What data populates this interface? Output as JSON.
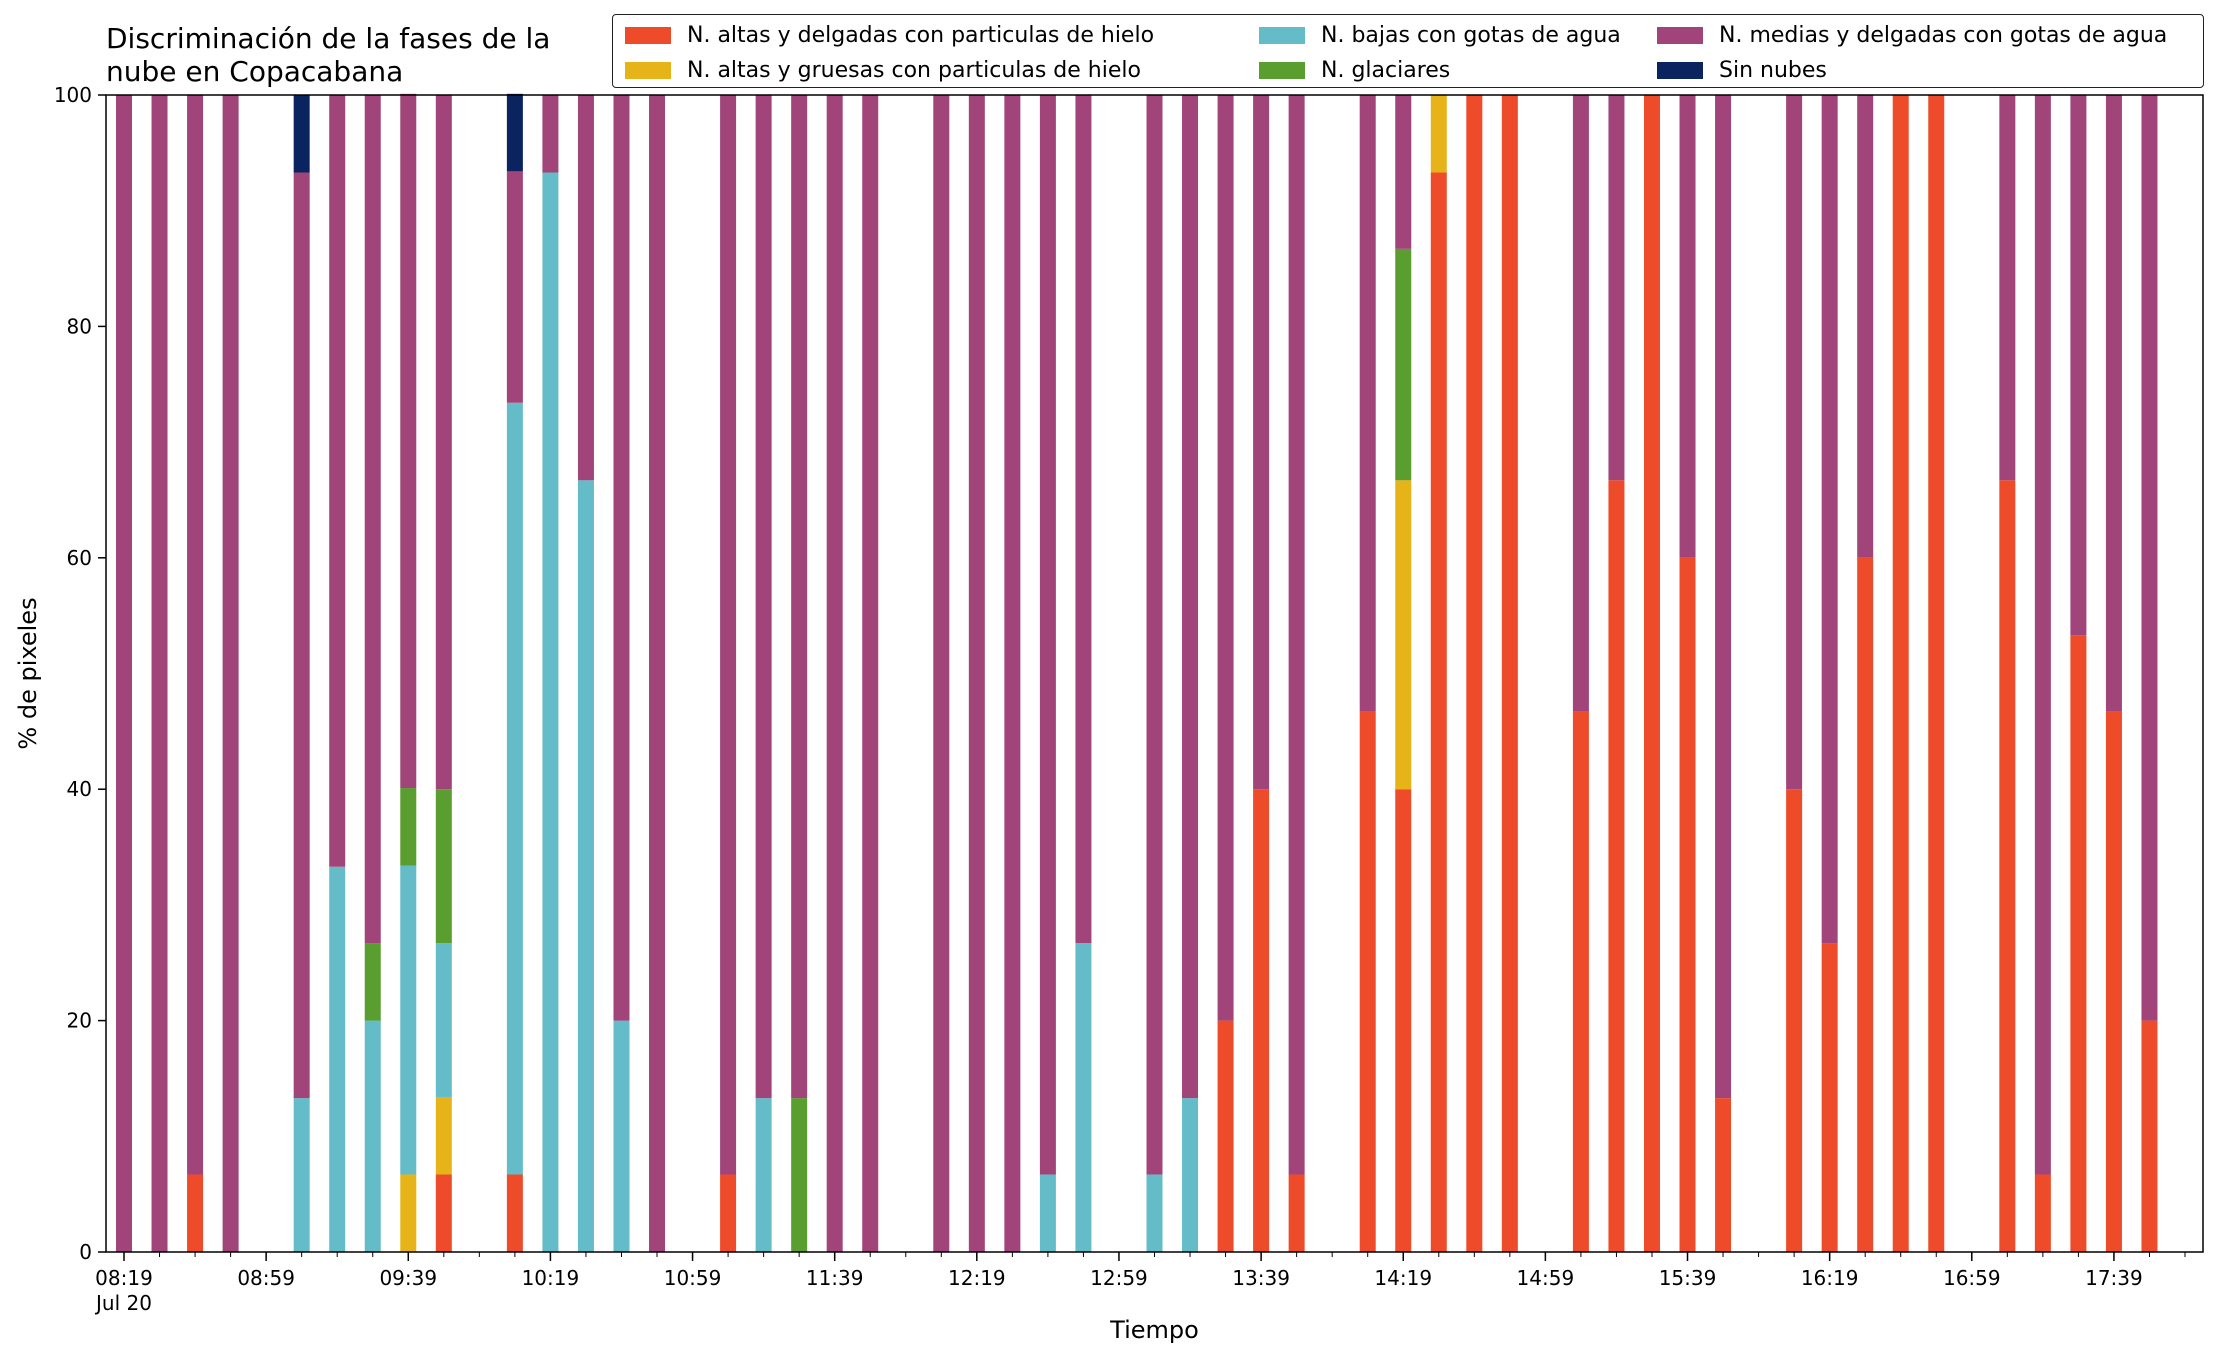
{
  "chart_data": {
    "type": "bar",
    "stacked": true,
    "title": "Discriminación de la fases de la\nnube en Copacabana",
    "xlabel": "Tiempo",
    "ylabel": "% de pixeles",
    "ylim": [
      0,
      100
    ],
    "yticks": [
      "0",
      "20",
      "40",
      "60",
      "80",
      "100"
    ],
    "xtick_labels": [
      "08:19\nJul 20",
      "08:59",
      "09:39",
      "10:19",
      "10:59",
      "11:39",
      "12:19",
      "12:59",
      "13:39",
      "14:19",
      "14:59",
      "15:39",
      "16:19",
      "16:59",
      "17:39"
    ],
    "grid": false,
    "legend_position": "top-right",
    "series": [
      {
        "name": "N. altas y delgadas con particulas de hielo",
        "color": "#ee4b2b"
      },
      {
        "name": "N. altas y gruesas con particulas de hielo",
        "color": "#e6b418"
      },
      {
        "name": "N. bajas con gotas de agua",
        "color": "#64bcc8"
      },
      {
        "name": "N. glaciares",
        "color": "#5a9e2f"
      },
      {
        "name": "N. medias y delgadas con gotas de agua",
        "color": "#a1447a"
      },
      {
        "name": "Sin nubes",
        "color": "#0b2460"
      }
    ],
    "bars": [
      {
        "time": "08:19",
        "values": [
          0,
          0,
          0,
          0,
          100,
          0
        ]
      },
      {
        "time": "08:29",
        "values": [
          0,
          0,
          0,
          0,
          100,
          0
        ]
      },
      {
        "time": "08:39",
        "values": [
          6.7,
          0,
          0,
          0,
          93.3,
          0
        ]
      },
      {
        "time": "08:49",
        "values": [
          0,
          0,
          0,
          0,
          100,
          0
        ]
      },
      {
        "time": "09:09",
        "values": [
          0,
          0,
          13.3,
          0,
          80,
          6.7
        ]
      },
      {
        "time": "09:19",
        "values": [
          0,
          0,
          33.3,
          0,
          66.7,
          0
        ]
      },
      {
        "time": "09:29",
        "values": [
          0,
          0,
          20,
          6.7,
          73.3,
          0
        ]
      },
      {
        "time": "09:39",
        "values": [
          0,
          6.7,
          26.7,
          6.7,
          60,
          0
        ]
      },
      {
        "time": "09:49",
        "values": [
          6.7,
          6.7,
          13.3,
          13.3,
          60,
          0
        ]
      },
      {
        "time": "10:09",
        "values": [
          6.7,
          0,
          66.7,
          0,
          20,
          6.7
        ]
      },
      {
        "time": "10:19",
        "values": [
          0,
          0,
          93.3,
          0,
          6.7,
          0
        ]
      },
      {
        "time": "10:29",
        "values": [
          0,
          0,
          66.7,
          0,
          33.3,
          0
        ]
      },
      {
        "time": "10:39",
        "values": [
          0,
          0,
          20,
          0,
          80,
          0
        ]
      },
      {
        "time": "10:49",
        "values": [
          0,
          0,
          0,
          0,
          100,
          0
        ]
      },
      {
        "time": "11:09",
        "values": [
          6.7,
          0,
          0,
          0,
          93.3,
          0
        ]
      },
      {
        "time": "11:19",
        "values": [
          0,
          0,
          13.3,
          0,
          86.7,
          0
        ]
      },
      {
        "time": "11:29",
        "values": [
          0,
          0,
          0,
          13.3,
          86.7,
          0
        ]
      },
      {
        "time": "11:39",
        "values": [
          0,
          0,
          0,
          0,
          100,
          0
        ]
      },
      {
        "time": "11:49",
        "values": [
          0,
          0,
          0,
          0,
          100,
          0
        ]
      },
      {
        "time": "12:09",
        "values": [
          0,
          0,
          0,
          0,
          100,
          0
        ]
      },
      {
        "time": "12:19",
        "values": [
          0,
          0,
          0,
          0,
          100,
          0
        ]
      },
      {
        "time": "12:29",
        "values": [
          0,
          0,
          0,
          0,
          100,
          0
        ]
      },
      {
        "time": "12:39",
        "values": [
          0,
          0,
          6.7,
          0,
          93.3,
          0
        ]
      },
      {
        "time": "12:49",
        "values": [
          0,
          0,
          26.7,
          0,
          73.3,
          0
        ]
      },
      {
        "time": "13:09",
        "values": [
          0,
          0,
          6.7,
          0,
          93.3,
          0
        ]
      },
      {
        "time": "13:19",
        "values": [
          0,
          0,
          13.3,
          0,
          86.7,
          0
        ]
      },
      {
        "time": "13:29",
        "values": [
          20,
          0,
          0,
          0,
          80,
          0
        ]
      },
      {
        "time": "13:39",
        "values": [
          40,
          0,
          0,
          0,
          60,
          0
        ]
      },
      {
        "time": "13:49",
        "values": [
          6.7,
          0,
          0,
          0,
          93.3,
          0
        ]
      },
      {
        "time": "14:09",
        "values": [
          46.7,
          0,
          0,
          0,
          53.3,
          0
        ]
      },
      {
        "time": "14:19",
        "values": [
          40,
          26.7,
          0,
          20,
          13.3,
          0
        ]
      },
      {
        "time": "14:29",
        "values": [
          93.3,
          6.7,
          0,
          0,
          0,
          0
        ]
      },
      {
        "time": "14:39",
        "values": [
          100,
          0,
          0,
          0,
          0,
          0
        ]
      },
      {
        "time": "14:49",
        "values": [
          100,
          0,
          0,
          0,
          0,
          0
        ]
      },
      {
        "time": "15:09",
        "values": [
          46.7,
          0,
          0,
          0,
          53.3,
          0
        ]
      },
      {
        "time": "15:19",
        "values": [
          66.7,
          0,
          0,
          0,
          33.3,
          0
        ]
      },
      {
        "time": "15:29",
        "values": [
          100,
          0,
          0,
          0,
          0,
          0
        ]
      },
      {
        "time": "15:39",
        "values": [
          60,
          0,
          0,
          0,
          40,
          0
        ]
      },
      {
        "time": "15:49",
        "values": [
          13.3,
          0,
          0,
          0,
          86.7,
          0
        ]
      },
      {
        "time": "16:09",
        "values": [
          40,
          0,
          0,
          0,
          60,
          0
        ]
      },
      {
        "time": "16:19",
        "values": [
          26.7,
          0,
          0,
          0,
          73.3,
          0
        ]
      },
      {
        "time": "16:29",
        "values": [
          60,
          0,
          0,
          0,
          40,
          0
        ]
      },
      {
        "time": "16:39",
        "values": [
          100,
          0,
          0,
          0,
          0,
          0
        ]
      },
      {
        "time": "16:49",
        "values": [
          100,
          0,
          0,
          0,
          0,
          0
        ]
      },
      {
        "time": "17:09",
        "values": [
          66.7,
          0,
          0,
          0,
          33.3,
          0
        ]
      },
      {
        "time": "17:19",
        "values": [
          6.7,
          0,
          0,
          0,
          93.3,
          0
        ]
      },
      {
        "time": "17:29",
        "values": [
          53.3,
          0,
          0,
          0,
          46.7,
          0
        ]
      },
      {
        "time": "17:39",
        "values": [
          46.7,
          0,
          0,
          0,
          53.3,
          0
        ]
      },
      {
        "time": "17:49",
        "values": [
          20,
          0,
          0,
          0,
          80,
          0
        ]
      }
    ]
  }
}
